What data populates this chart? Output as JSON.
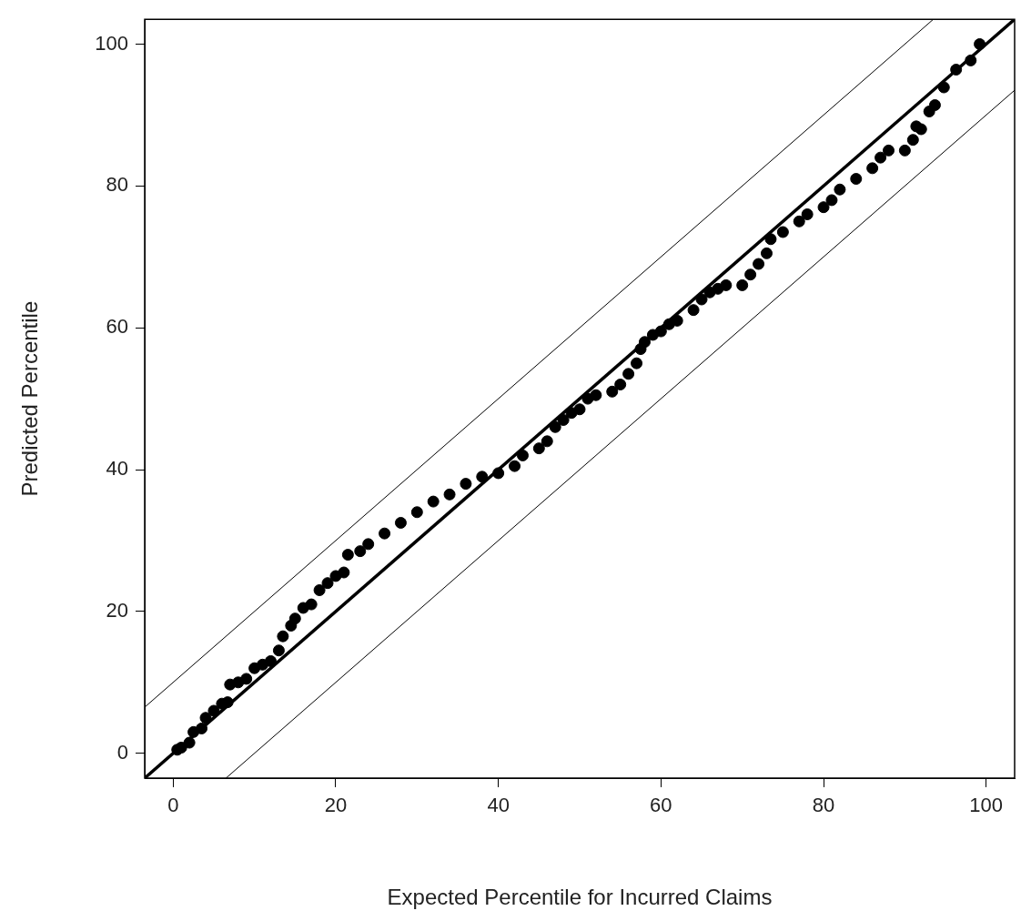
{
  "chart_data": {
    "type": "scatter",
    "xlabel": "Expected Percentile for Incurred Claims",
    "ylabel": "Predicted Percentile",
    "xlim": [
      -3.5,
      103.5
    ],
    "ylim": [
      -3.5,
      103.5
    ],
    "xticks": [
      0,
      20,
      40,
      60,
      80,
      100
    ],
    "yticks": [
      0,
      20,
      40,
      60,
      80,
      100
    ],
    "legend": false,
    "series": [
      {
        "marker": "circle",
        "color": "#000000",
        "x": [
          0.5,
          1,
          2,
          2.5,
          3.5,
          4,
          5,
          6,
          6.7,
          7,
          8,
          9,
          10,
          11,
          12,
          13,
          13.5,
          14.5,
          15,
          16,
          17,
          18,
          19,
          20,
          21,
          21.5,
          23,
          24,
          26,
          28,
          30,
          32,
          34,
          36,
          38,
          40,
          42,
          43,
          45,
          46,
          47,
          48,
          49,
          50,
          51,
          52,
          54,
          55,
          56,
          57,
          57.5,
          58,
          59,
          60,
          61,
          62,
          64,
          65,
          66,
          67,
          68,
          70,
          71,
          72,
          73,
          73.5,
          75,
          77,
          78,
          80,
          81,
          82,
          84,
          86,
          87,
          88,
          90,
          91,
          91.4,
          92,
          93,
          93.7,
          94.8,
          96.3,
          98.1,
          99.2
        ],
        "values": [
          0.5,
          0.8,
          1.5,
          3,
          3.5,
          5,
          6,
          7,
          7.2,
          9.7,
          10,
          10.5,
          12,
          12.5,
          13,
          14.5,
          16.5,
          18,
          19,
          20.5,
          21,
          23,
          24,
          25,
          25.5,
          28,
          28.5,
          29.5,
          31,
          32.5,
          34,
          35.5,
          36.5,
          38,
          39,
          39.5,
          40.5,
          42,
          43,
          44,
          46,
          47,
          48,
          48.5,
          50,
          50.5,
          51,
          52,
          53.5,
          55,
          57,
          58,
          59,
          59.5,
          60.5,
          61,
          62.5,
          64,
          65,
          65.5,
          66,
          66,
          67.5,
          69,
          70.5,
          72.5,
          73.5,
          75,
          76,
          77,
          78,
          79.5,
          81,
          82.5,
          84,
          85,
          85,
          86.5,
          88.4,
          88,
          90.5,
          91.4,
          93.9,
          96.4,
          97.7,
          100
        ]
      },
      {
        "type": "line",
        "marker": "none",
        "color": "#000000",
        "x": [
          -3.5,
          103.5
        ],
        "values": [
          -3.5,
          103.5
        ]
      },
      {
        "type": "line",
        "marker": "none",
        "color": "#000000",
        "x": [
          -3.5,
          93.5
        ],
        "values": [
          6.5,
          103.5
        ]
      },
      {
        "type": "line",
        "marker": "none",
        "color": "#000000",
        "x": [
          6.5,
          103.5
        ],
        "values": [
          -3.5,
          93.5
        ]
      }
    ]
  }
}
